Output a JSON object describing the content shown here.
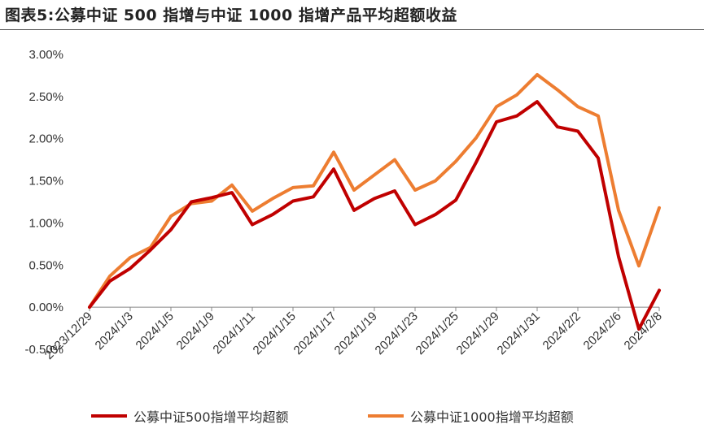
{
  "figure_title": "图表5:公募中证 500 指增与中证 1000 指增产品平均超额收益",
  "chart_data": {
    "type": "line",
    "title": "",
    "xlabel": "",
    "ylabel": "",
    "ylim": [
      -0.005,
      0.03
    ],
    "ytick_labels": [
      "3.00%",
      "2.50%",
      "2.00%",
      "1.50%",
      "1.00%",
      "0.50%",
      "0.00%",
      "-0.50%"
    ],
    "ytick_values": [
      0.03,
      0.025,
      0.02,
      0.015,
      0.01,
      0.005,
      0.0,
      -0.005
    ],
    "x": [
      "2023/12/29",
      "2024/1/2",
      "2024/1/3",
      "2024/1/4",
      "2024/1/5",
      "2024/1/8",
      "2024/1/9",
      "2024/1/10",
      "2024/1/11",
      "2024/1/12",
      "2024/1/15",
      "2024/1/16",
      "2024/1/17",
      "2024/1/18",
      "2024/1/19",
      "2024/1/22",
      "2024/1/23",
      "2024/1/24",
      "2024/1/25",
      "2024/1/26",
      "2024/1/29",
      "2024/1/30",
      "2024/1/31",
      "2024/2/1",
      "2024/2/2",
      "2024/2/5",
      "2024/2/6",
      "2024/2/7",
      "2024/2/8"
    ],
    "xtick_labels": [
      "2023/12/29",
      "2024/1/3",
      "2024/1/5",
      "2024/1/9",
      "2024/1/11",
      "2024/1/15",
      "2024/1/17",
      "2024/1/19",
      "2024/1/23",
      "2024/1/25",
      "2024/1/29",
      "2024/1/31",
      "2024/2/2",
      "2024/2/6",
      "2024/2/8"
    ],
    "series": [
      {
        "name": "公募中证500指增平均超额",
        "color": "#c00000",
        "values": [
          0.0,
          0.0031,
          0.0046,
          0.0068,
          0.0092,
          0.0125,
          0.013,
          0.0136,
          0.0098,
          0.011,
          0.0126,
          0.0131,
          0.0164,
          0.0115,
          0.0129,
          0.0138,
          0.0098,
          0.011,
          0.0127,
          0.0172,
          0.022,
          0.0227,
          0.0244,
          0.0214,
          0.0209,
          0.0177,
          0.006,
          -0.0026,
          0.002
        ]
      },
      {
        "name": "公募中证1000指增平均超额",
        "color": "#ed7d31",
        "values": [
          0.0,
          0.0037,
          0.0059,
          0.0071,
          0.0108,
          0.0123,
          0.0126,
          0.0145,
          0.0114,
          0.0129,
          0.0142,
          0.0144,
          0.0184,
          0.0139,
          0.0157,
          0.0175,
          0.0139,
          0.015,
          0.0173,
          0.0201,
          0.0238,
          0.0252,
          0.0276,
          0.0258,
          0.0238,
          0.0227,
          0.0115,
          0.0049,
          0.0118
        ]
      }
    ],
    "grid": false,
    "legend_position": "bottom"
  }
}
